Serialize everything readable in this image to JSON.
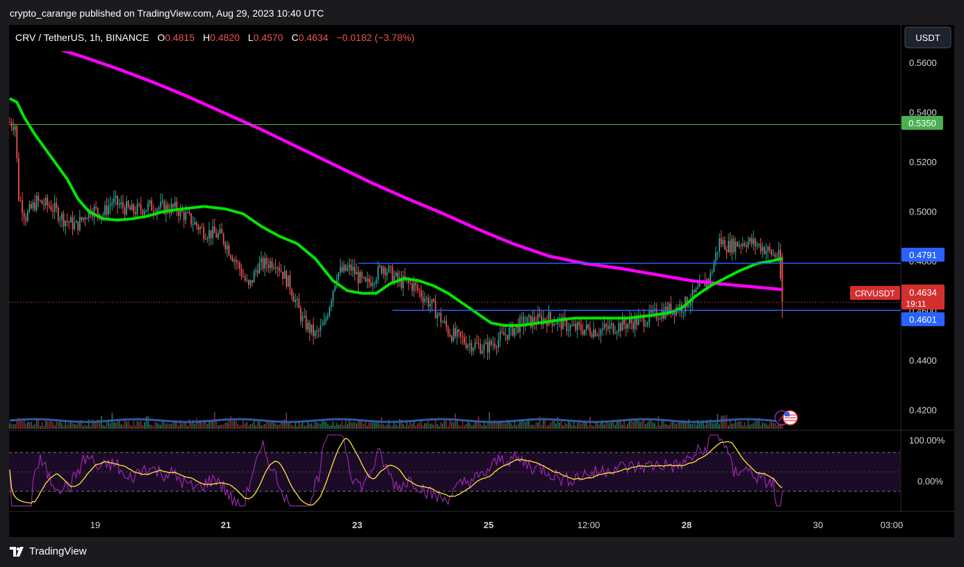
{
  "publisher_line": "crypto_carange published on TradingView.com, Aug 29, 2023 10:40 UTC",
  "brand": "TradingView",
  "legend": {
    "symbol": "CRV / TetherUS, 1h, BINANCE",
    "open_label": "O",
    "open": "0.4815",
    "high_label": "H",
    "high": "0.4820",
    "low_label": "L",
    "low": "0.4570",
    "close_label": "C",
    "close": "0.4634",
    "change": "−0.0182 (−3.78%)"
  },
  "currency_button": "USDT",
  "price_tags": {
    "level_top": "0.5350",
    "resistance": "0.4791",
    "support": "0.4601",
    "symbol_tag": "CRVUSDT",
    "last_price": "0.4634",
    "countdown": "19:11"
  },
  "colors": {
    "background": "#000000",
    "frame": "#1b1b1f",
    "up": "#26a69a",
    "down": "#ef5350",
    "ma_fast": "#00e600",
    "ma_slow": "#ff00ff",
    "hline_level": "#4caf50",
    "hline_sr": "#2962ff",
    "rsi_line": "#9c27b0",
    "rsi_ma": "#ffeb3b",
    "volume_ma": "#2a5caa"
  },
  "chart_data": [
    {
      "type": "candlestick",
      "title": "CRV / TetherUS, 1h, BINANCE",
      "y_axis_ticks": [
        "0.5600",
        "0.5400",
        "0.5200",
        "0.5000",
        "0.4800",
        "0.4600",
        "0.4400",
        "0.4200"
      ],
      "ylim": [
        0.4115,
        0.5645
      ],
      "x_axis_ticks": [
        "19",
        "21",
        "23",
        "25",
        "12:00",
        "28",
        "30",
        "03:00"
      ],
      "horizontal_levels": [
        0.535,
        0.4791,
        0.4601
      ],
      "last_price": 0.4634,
      "price_path": [
        [
          0,
          0.536
        ],
        [
          3,
          0.535
        ],
        [
          5,
          0.506
        ],
        [
          9,
          0.498
        ],
        [
          15,
          0.504
        ],
        [
          23,
          0.502
        ],
        [
          30,
          0.497
        ],
        [
          37,
          0.494
        ],
        [
          45,
          0.501
        ],
        [
          52,
          0.499
        ],
        [
          57,
          0.504
        ],
        [
          68,
          0.5
        ],
        [
          78,
          0.502
        ],
        [
          93,
          0.501
        ],
        [
          108,
          0.492
        ],
        [
          118,
          0.49
        ],
        [
          128,
          0.477
        ],
        [
          133,
          0.469
        ],
        [
          138,
          0.478
        ],
        [
          148,
          0.48
        ],
        [
          156,
          0.47
        ],
        [
          163,
          0.456
        ],
        [
          170,
          0.45
        ],
        [
          175,
          0.454
        ],
        [
          182,
          0.475
        ],
        [
          190,
          0.477
        ],
        [
          198,
          0.47
        ],
        [
          208,
          0.478
        ],
        [
          216,
          0.472
        ],
        [
          225,
          0.47
        ],
        [
          235,
          0.462
        ],
        [
          245,
          0.451
        ],
        [
          255,
          0.447
        ],
        [
          265,
          0.445
        ],
        [
          275,
          0.45
        ],
        [
          285,
          0.455
        ],
        [
          300,
          0.457
        ],
        [
          313,
          0.453
        ],
        [
          328,
          0.452
        ],
        [
          345,
          0.455
        ],
        [
          355,
          0.457
        ],
        [
          365,
          0.46
        ],
        [
          375,
          0.462
        ],
        [
          382,
          0.467
        ],
        [
          390,
          0.474
        ],
        [
          395,
          0.488
        ],
        [
          400,
          0.486
        ],
        [
          410,
          0.488
        ],
        [
          418,
          0.486
        ],
        [
          424,
          0.483
        ],
        [
          428,
          0.4815
        ],
        [
          430,
          0.4634
        ]
      ],
      "series": [
        {
          "name": "",
          "type": "line",
          "role": "fast moving average",
          "points": [
            [
              0,
              0.5455
            ],
            [
              4,
              0.544
            ],
            [
              8,
              0.538
            ],
            [
              14,
              0.531
            ],
            [
              20,
              0.525
            ],
            [
              26,
              0.519
            ],
            [
              32,
              0.513
            ],
            [
              38,
              0.505
            ],
            [
              44,
              0.5
            ],
            [
              52,
              0.497
            ],
            [
              60,
              0.4965
            ],
            [
              68,
              0.497
            ],
            [
              76,
              0.498
            ],
            [
              86,
              0.5
            ],
            [
              96,
              0.501
            ],
            [
              108,
              0.502
            ],
            [
              120,
              0.501
            ],
            [
              130,
              0.499
            ],
            [
              140,
              0.494
            ],
            [
              150,
              0.49
            ],
            [
              160,
              0.487
            ],
            [
              170,
              0.481
            ],
            [
              180,
              0.472
            ],
            [
              188,
              0.468
            ],
            [
              196,
              0.467
            ],
            [
              204,
              0.467
            ],
            [
              212,
              0.471
            ],
            [
              220,
              0.473
            ],
            [
              228,
              0.472
            ],
            [
              236,
              0.47
            ],
            [
              244,
              0.467
            ],
            [
              252,
              0.463
            ],
            [
              260,
              0.459
            ],
            [
              268,
              0.455
            ],
            [
              276,
              0.454
            ],
            [
              284,
              0.454
            ],
            [
              294,
              0.455
            ],
            [
              304,
              0.456
            ],
            [
              314,
              0.457
            ],
            [
              324,
              0.457
            ],
            [
              334,
              0.457
            ],
            [
              344,
              0.457
            ],
            [
              356,
              0.458
            ],
            [
              366,
              0.459
            ],
            [
              374,
              0.461
            ],
            [
              382,
              0.466
            ],
            [
              390,
              0.47
            ],
            [
              398,
              0.473
            ],
            [
              406,
              0.476
            ],
            [
              416,
              0.479
            ],
            [
              424,
              0.48
            ],
            [
              430,
              0.481
            ]
          ]
        },
        {
          "name": "",
          "type": "line",
          "role": "slow moving average",
          "points": [
            [
              0,
              0.572
            ],
            [
              20,
              0.567
            ],
            [
              40,
              0.5625
            ],
            [
              60,
              0.5575
            ],
            [
              80,
              0.552
            ],
            [
              100,
              0.546
            ],
            [
              120,
              0.5395
            ],
            [
              140,
              0.533
            ],
            [
              160,
              0.526
            ],
            [
              180,
              0.519
            ],
            [
              200,
              0.512
            ],
            [
              220,
              0.5055
            ],
            [
              240,
              0.4995
            ],
            [
              260,
              0.493
            ],
            [
              280,
              0.487
            ],
            [
              300,
              0.482
            ],
            [
              320,
              0.479
            ],
            [
              340,
              0.477
            ],
            [
              360,
              0.4745
            ],
            [
              380,
              0.472
            ],
            [
              400,
              0.4705
            ],
            [
              415,
              0.4695
            ],
            [
              430,
              0.4685
            ]
          ]
        },
        {
          "name": "",
          "type": "area",
          "role": "volume"
        },
        {
          "name": "",
          "type": "line",
          "role": "RSI",
          "scale": [
            "100.00%",
            "0.00%"
          ]
        },
        {
          "name": "",
          "type": "line",
          "role": "RSI moving average"
        }
      ]
    }
  ]
}
